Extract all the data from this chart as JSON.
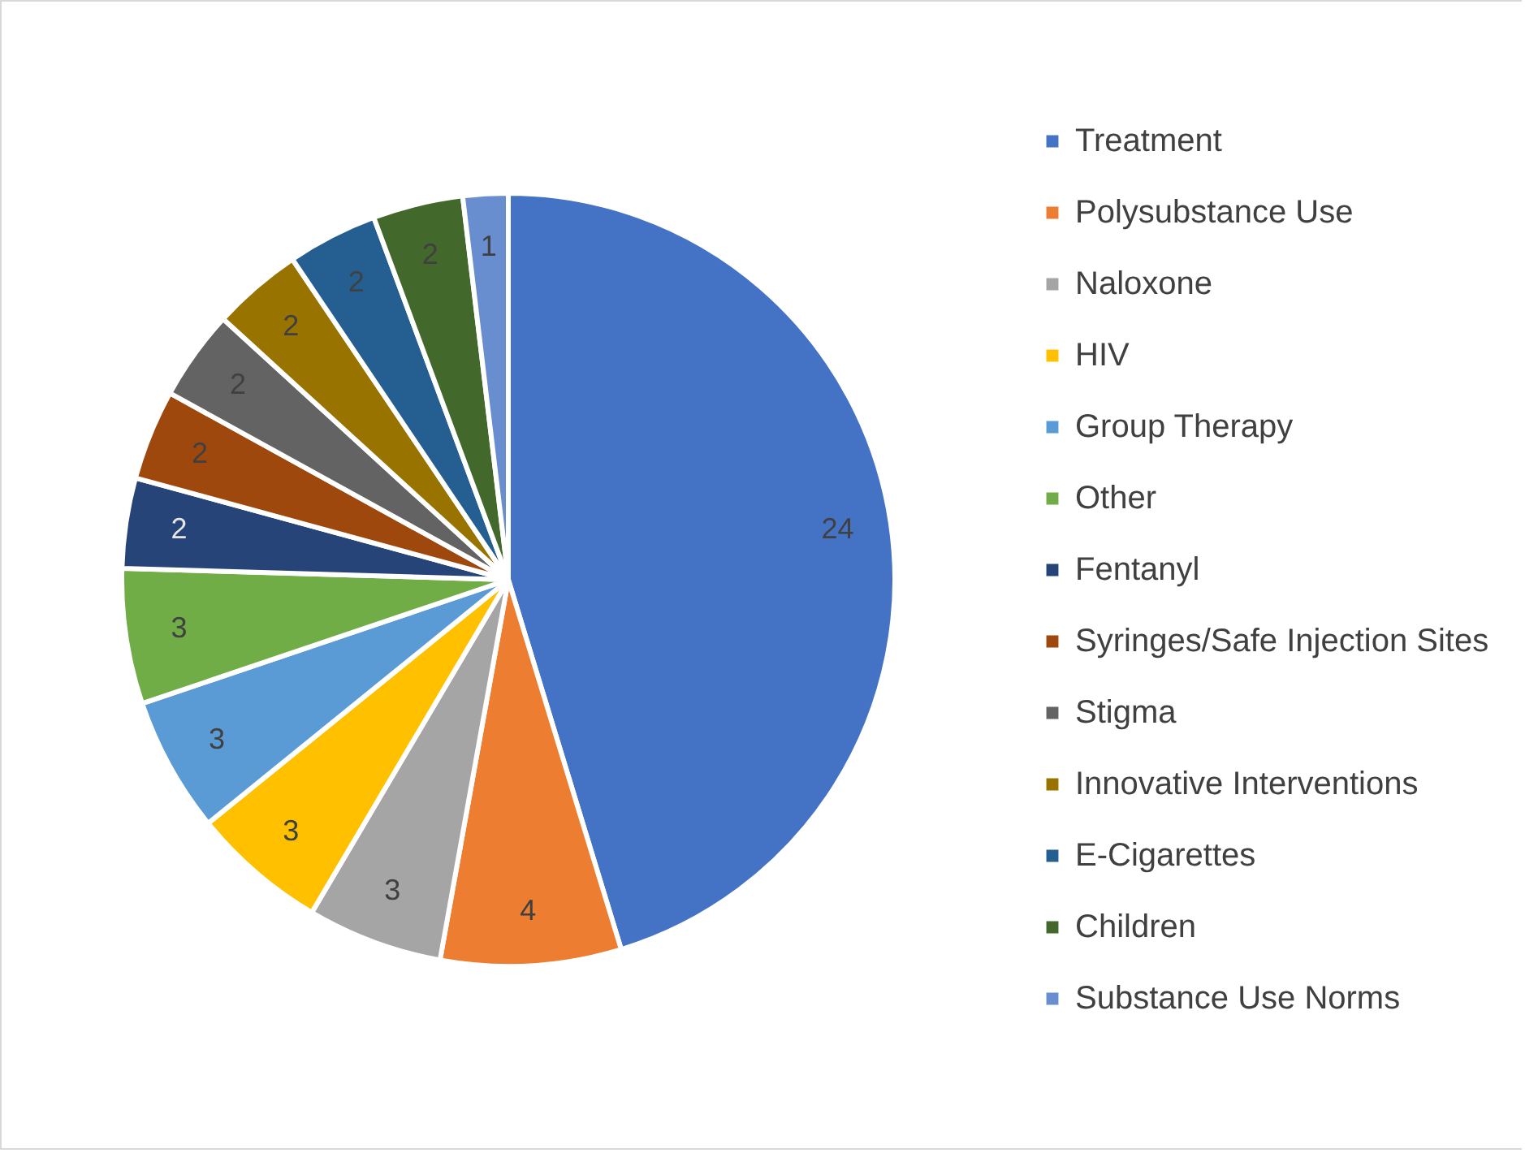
{
  "chart_data": {
    "type": "pie",
    "categories": [
      "Treatment",
      "Polysubstance Use",
      "Naloxone",
      "HIV",
      "Group Therapy",
      "Other",
      "Fentanyl",
      "Syringes/Safe Injection Sites",
      "Stigma",
      "Innovative Interventions",
      "E-Cigarettes",
      "Children",
      "Substance Use Norms"
    ],
    "values": [
      24,
      4,
      3,
      3,
      3,
      3,
      2,
      2,
      2,
      2,
      2,
      2,
      1
    ],
    "colors": [
      "#4472c4",
      "#ed7d31",
      "#a5a5a5",
      "#ffc000",
      "#5b9bd5",
      "#70ad47",
      "#264478",
      "#9e480e",
      "#636363",
      "#997300",
      "#255e91",
      "#43682b",
      "#698ed0"
    ],
    "data_labels": true,
    "legend": "right"
  }
}
